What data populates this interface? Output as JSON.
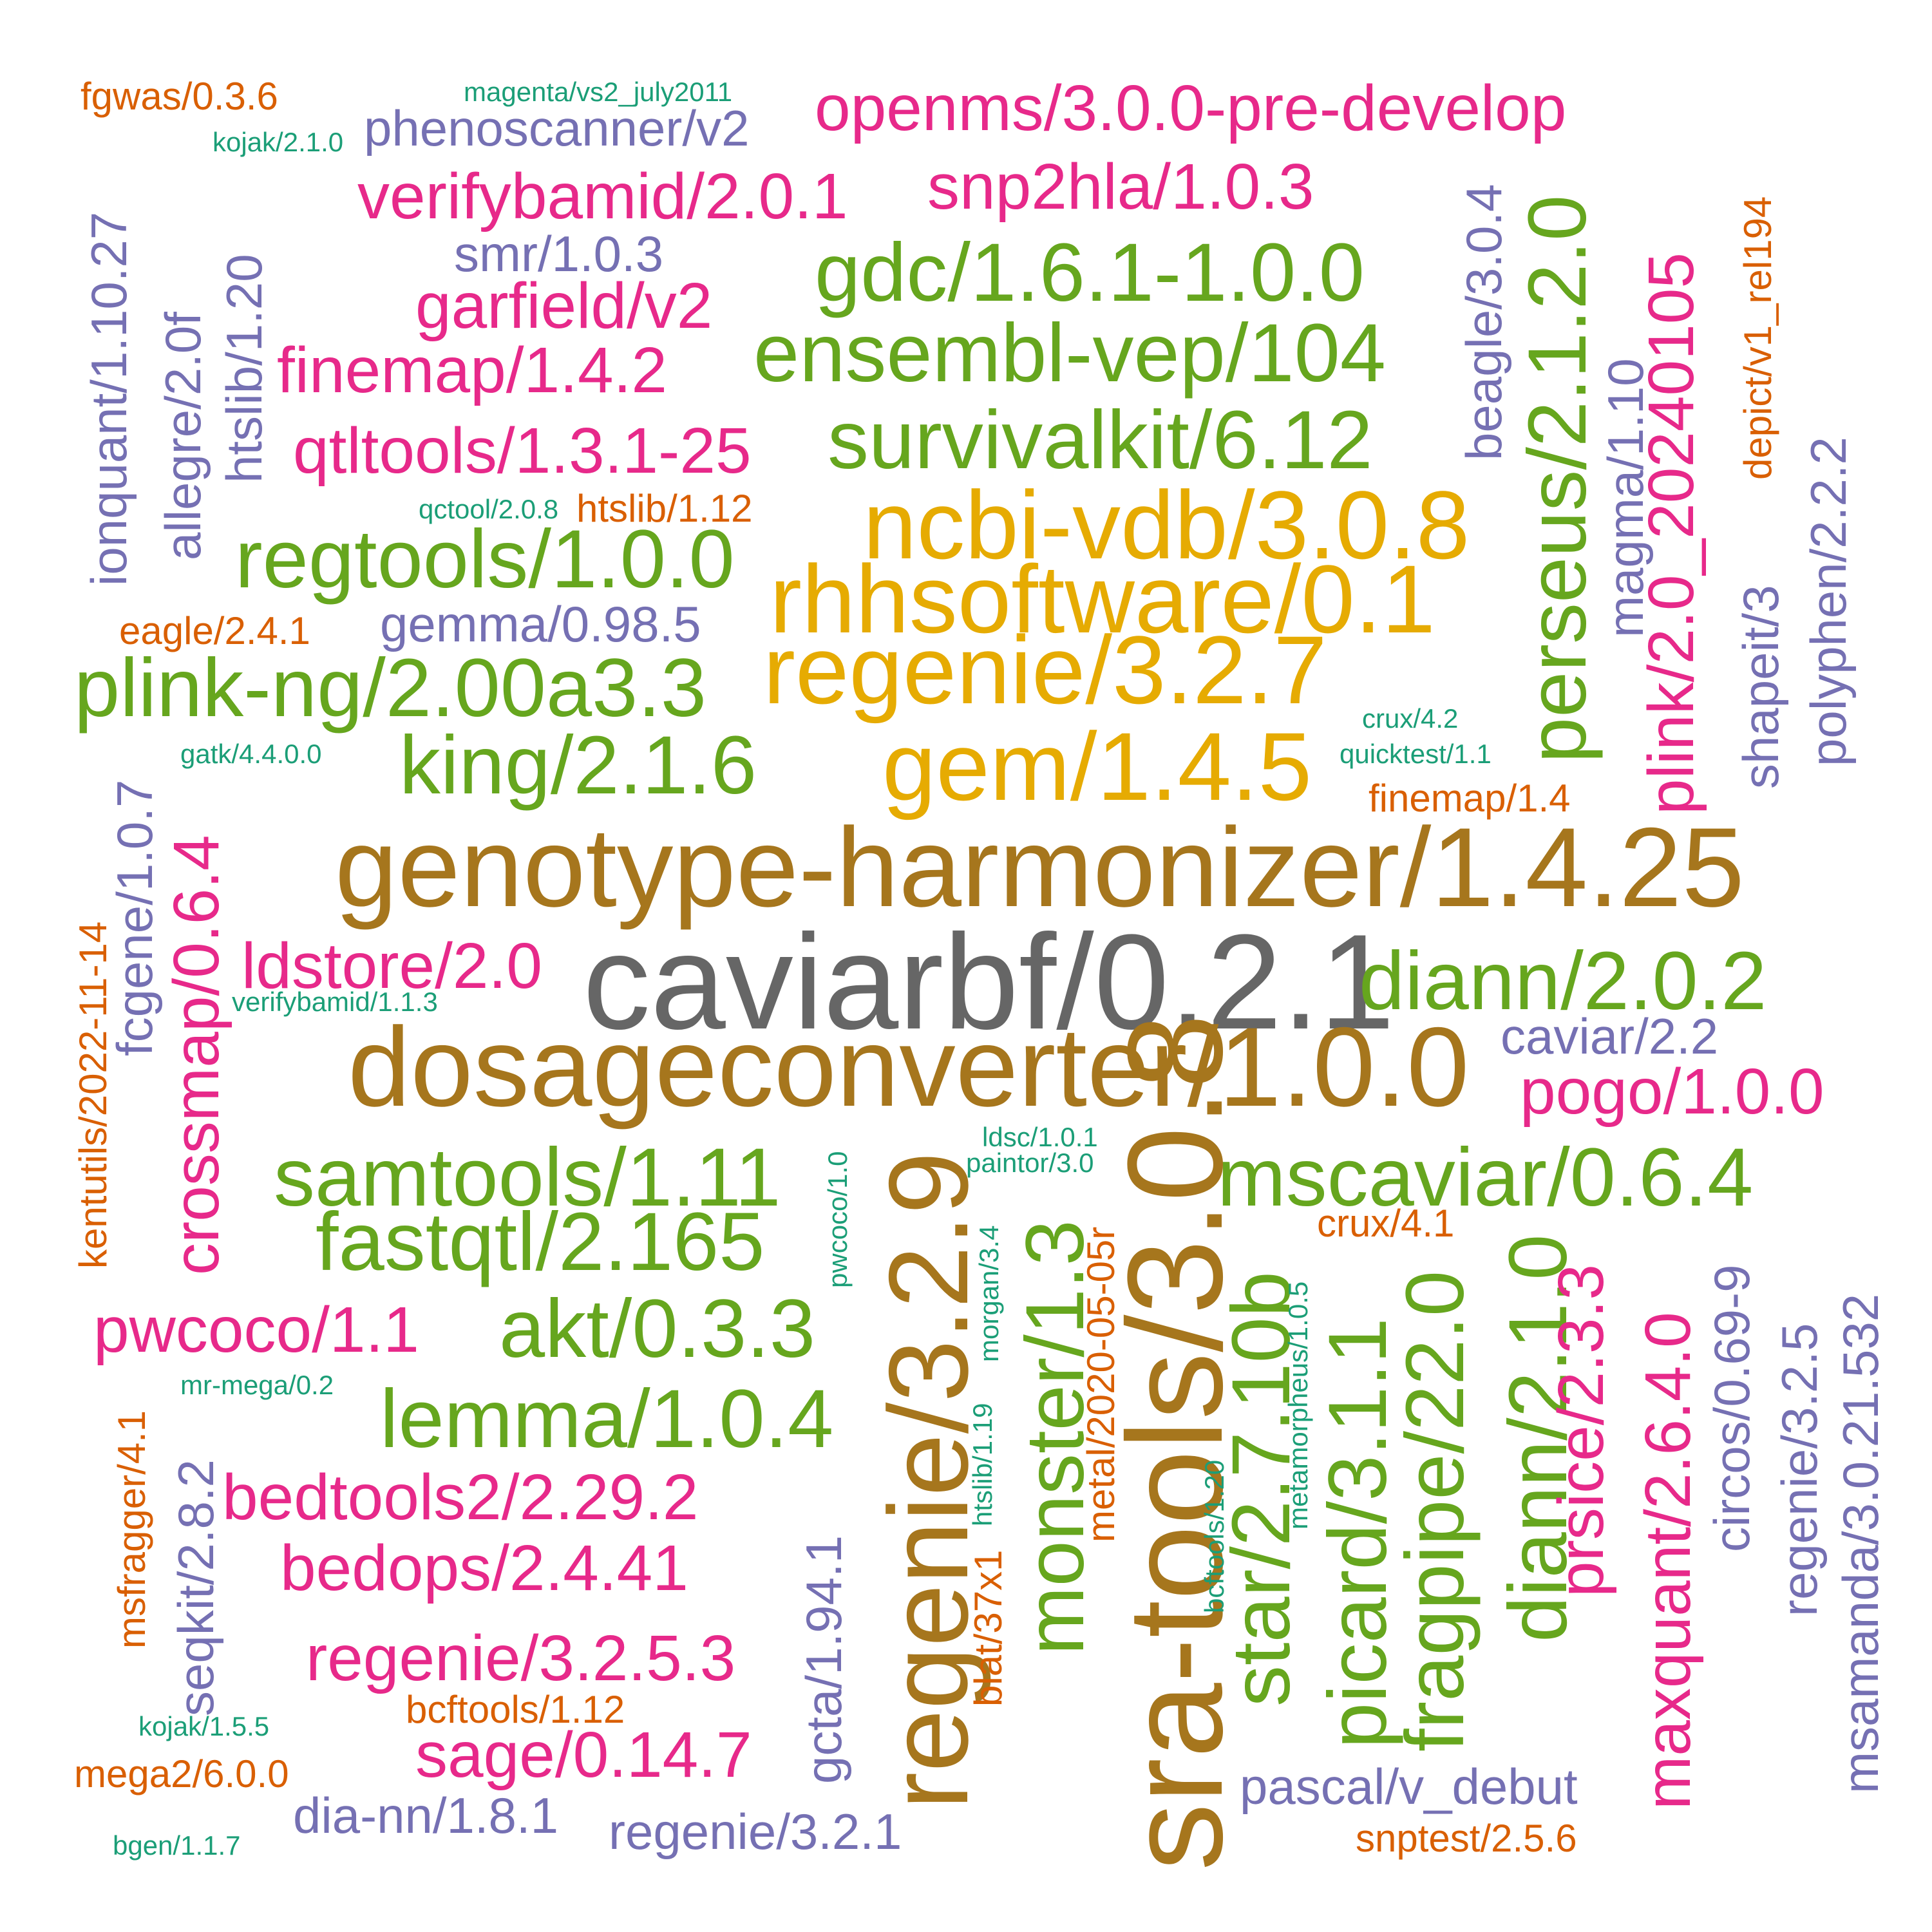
{
  "colors": {
    "gray": "#666666",
    "brown": "#A6761D",
    "gold": "#E6AB02",
    "green": "#66A61E",
    "magenta": "#E7298A",
    "purple": "#7570B3",
    "orange": "#D95F02",
    "teal": "#1B9E77"
  },
  "words": [
    "caviarbf/0.2.1",
    "genotype-harmonizer/1.4.25",
    "dosageconverter/1.0.0",
    "sra-tools/3.0.8",
    "regenie/3.2.9",
    "ncbi-vdb/3.0.8",
    "rhhsoftware/0.1",
    "regenie/3.2.7",
    "gem/1.4.5",
    "gdc/1.6.1-1.0.0",
    "ensembl-vep/104",
    "survivalkit/6.12",
    "regtools/1.0.0",
    "plink-ng/2.00a3.3",
    "king/2.1.6",
    "diann/2.0.2",
    "samtools/1.11",
    "fastqtl/2.165",
    "mscaviar/0.6.4",
    "akt/0.3.3",
    "lemma/1.0.4",
    "monster/1.3",
    "star/2.7.10b",
    "picard/3.1.1",
    "fragpipe/22.0",
    "diann/2.1.0",
    "perseus/2.1.2.0",
    "openms/3.0.0-pre-develop",
    "verifybamid/2.0.1",
    "snp2hla/1.0.3",
    "garfield/v2",
    "finemap/1.4.2",
    "qtltools/1.3.1-25",
    "ldstore/2.0",
    "pogo/1.0.0",
    "pwcoco/1.1",
    "bedtools2/2.29.2",
    "bedops/2.4.41",
    "regenie/3.2.5.3",
    "sage/0.14.7",
    "crossmap/0.6.4",
    "prsice/2.3.3",
    "maxquant/2.6.4.0",
    "plink/2.0_20240105",
    "phenoscanner/v2",
    "smr/1.0.3",
    "gemma/0.98.5",
    "caviar/2.2",
    "pascal/v_debut",
    "dia-nn/1.8.1",
    "regenie/3.2.1",
    "ionquant/1.10.27",
    "allegre/2.0f",
    "htslib/1.20",
    "fcgene/1.0.7",
    "seqkit/2.8.2",
    "gcta/1.94.1",
    "beagle/3.0.4",
    "magma/1.10",
    "shapeit/3",
    "polyphen/2.2.2",
    "circos/0.69-9",
    "regenie/3.2.5",
    "msamanda/3.0.21.532",
    "fgwas/0.3.6",
    "htslib/1.12",
    "eagle/2.4.1",
    "finemap/1.4",
    "crux/4.1",
    "bcftools/1.12",
    "mega2/6.0.0",
    "snptest/2.5.6",
    "kentutils/2022-11-14",
    "msfragger/4.1",
    "blat/37x1",
    "metal/2020-05-05r",
    "depict/v1_rel194",
    "magenta/vs2_july2011",
    "kojak/2.1.0",
    "qctool/2.0.8",
    "gatk/4.4.0.0",
    "crux/4.2",
    "quicktest/1.1",
    "verifybamid/1.1.3",
    "ldsc/1.0.1",
    "paintor/3.0",
    "pwcoco/1.0",
    "morgan/3.4",
    "htslib/1.19",
    "bcftools/1.20",
    "metamorpheus/1.0.5",
    "mr-mega/0.2",
    "kojak/1.5.5",
    "bgen/1.1.7"
  ]
}
